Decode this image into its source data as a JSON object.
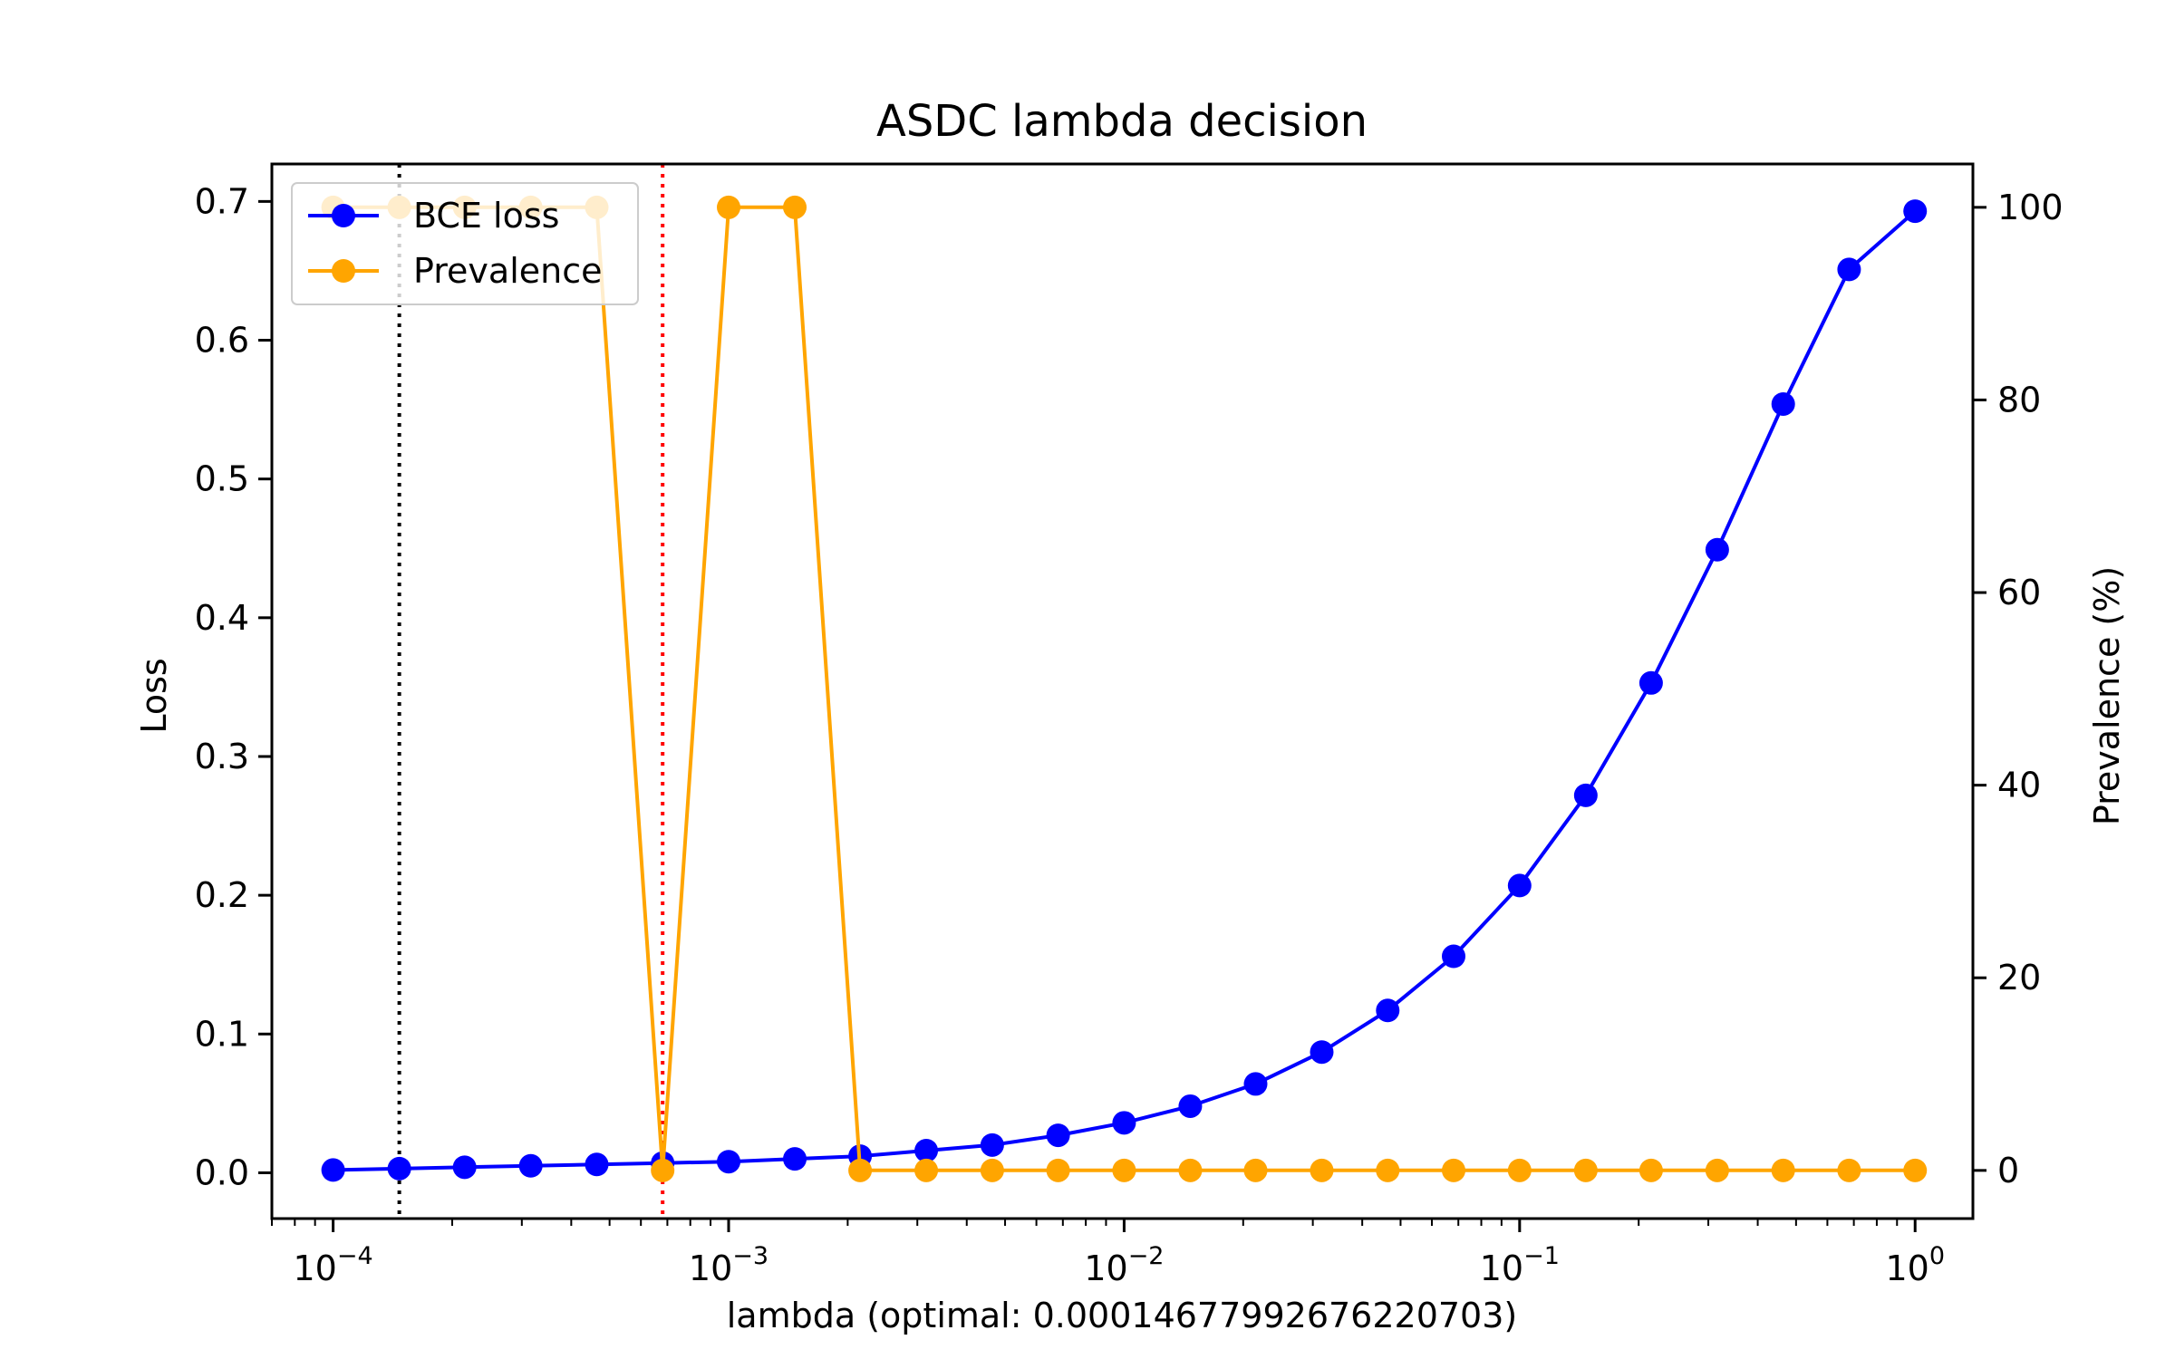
{
  "chart_data": {
    "type": "line",
    "title": "ASDC lambda decision",
    "xlabel": "lambda (optimal: 0.00014677992676220703)",
    "ylabel_left": "Loss",
    "ylabel_right": "Prevalence (%)",
    "x_scale": "log",
    "xlim": [
      7e-05,
      1.4
    ],
    "ylim_left": [
      -0.033,
      0.727
    ],
    "ylim_right": [
      -5,
      104.5
    ],
    "x_ticks": [
      {
        "value": 0.0001,
        "base": "10",
        "exp": "−4"
      },
      {
        "value": 0.001,
        "base": "10",
        "exp": "−3"
      },
      {
        "value": 0.01,
        "base": "10",
        "exp": "−2"
      },
      {
        "value": 0.1,
        "base": "10",
        "exp": "−1"
      },
      {
        "value": 1,
        "base": "10",
        "exp": "0"
      }
    ],
    "y_ticks_left": [
      {
        "value": 0.0,
        "label": "0.0"
      },
      {
        "value": 0.1,
        "label": "0.1"
      },
      {
        "value": 0.2,
        "label": "0.2"
      },
      {
        "value": 0.3,
        "label": "0.3"
      },
      {
        "value": 0.4,
        "label": "0.4"
      },
      {
        "value": 0.5,
        "label": "0.5"
      },
      {
        "value": 0.6,
        "label": "0.6"
      },
      {
        "value": 0.7,
        "label": "0.7"
      }
    ],
    "y_ticks_right": [
      {
        "value": 0,
        "label": "0"
      },
      {
        "value": 20,
        "label": "20"
      },
      {
        "value": 40,
        "label": "40"
      },
      {
        "value": 60,
        "label": "60"
      },
      {
        "value": 80,
        "label": "80"
      },
      {
        "value": 100,
        "label": "100"
      }
    ],
    "x": [
      0.0001,
      0.000147,
      0.000215,
      0.000316,
      0.000464,
      0.000681,
      0.001,
      0.00147,
      0.00215,
      0.00316,
      0.00464,
      0.00681,
      0.01,
      0.0147,
      0.0215,
      0.0316,
      0.0464,
      0.0681,
      0.1,
      0.147,
      0.215,
      0.316,
      0.464,
      0.681,
      1.0
    ],
    "series": [
      {
        "name": "BCE loss",
        "axis": "left",
        "color": "#0000ff",
        "values": [
          0.002,
          0.003,
          0.004,
          0.005,
          0.006,
          0.007,
          0.008,
          0.01,
          0.012,
          0.016,
          0.02,
          0.027,
          0.036,
          0.048,
          0.064,
          0.087,
          0.117,
          0.156,
          0.207,
          0.272,
          0.353,
          0.449,
          0.554,
          0.651,
          0.693
        ]
      },
      {
        "name": "Prevalence",
        "axis": "right",
        "color": "#ffa500",
        "values": [
          100,
          100,
          100,
          100,
          100,
          0,
          100,
          100,
          0,
          0,
          0,
          0,
          0,
          0,
          0,
          0,
          0,
          0,
          0,
          0,
          0,
          0,
          0,
          0,
          0
        ]
      }
    ],
    "vlines": [
      {
        "x": 0.000147,
        "color": "#000000",
        "style": "dotted"
      },
      {
        "x": 0.000681,
        "color": "#ff0000",
        "style": "dotted"
      }
    ],
    "legend": "upper-left",
    "grid": false
  }
}
